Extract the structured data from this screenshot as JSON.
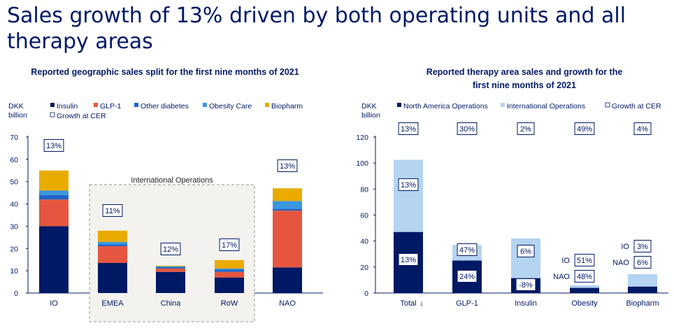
{
  "page": {
    "title": "Sales growth of 13% driven by both operating units and all therapy areas"
  },
  "colors": {
    "insulin": "#001965",
    "glp1": "#E6553F",
    "other_diabetes": "#1E64C8",
    "obesity_care": "#3B97DE",
    "biopharm": "#EAAB00",
    "north_america": "#001965",
    "international": "#B4D4F2",
    "text": "#001965"
  },
  "chart_data": [
    {
      "type": "bar",
      "stacked": true,
      "title": "Reported geographic sales split for the first nine months of 2021",
      "ylabel_lines": [
        "DKK",
        "billion"
      ],
      "ylim": [
        0,
        70
      ],
      "yticks": [
        0,
        10,
        20,
        30,
        40,
        50,
        60,
        70
      ],
      "categories": [
        "IO",
        "EMEA",
        "China",
        "RoW",
        "NAO"
      ],
      "series": [
        {
          "name": "Insulin",
          "color_key": "insulin",
          "values": [
            30.0,
            13.5,
            9.5,
            7.0,
            11.5
          ]
        },
        {
          "name": "GLP-1",
          "color_key": "glp1",
          "values": [
            12.0,
            7.5,
            1.5,
            2.5,
            25.5
          ]
        },
        {
          "name": "Other diabetes",
          "color_key": "other_diabetes",
          "values": [
            2.0,
            0.8,
            0.6,
            1.0,
            0.8
          ]
        },
        {
          "name": "Obesity Care",
          "color_key": "obesity_care",
          "values": [
            2.0,
            1.2,
            0.4,
            0.5,
            3.5
          ]
        },
        {
          "name": "Biopharm",
          "color_key": "biopharm",
          "values": [
            9.0,
            5.0,
            0.3,
            3.8,
            5.7
          ]
        }
      ],
      "growth_legend": "Growth at CER",
      "growth": [
        "13%",
        "11%",
        "12%",
        "17%",
        "13%"
      ],
      "group_box": {
        "label": "International Operations"
      }
    },
    {
      "type": "bar",
      "stacked": true,
      "title_lines": [
        "Reported therapy area sales and growth for the",
        "first nine months of 2021"
      ],
      "ylabel_lines": [
        "DKK",
        "billion"
      ],
      "ylim": [
        0,
        120
      ],
      "yticks": [
        0,
        20,
        40,
        60,
        80,
        100,
        120
      ],
      "categories": [
        "Total",
        "GLP-1",
        "Insulin",
        "Obesity",
        "Biopharm"
      ],
      "category_footnote": "1",
      "series": [
        {
          "name": "North America Operations",
          "color_key": "north_america",
          "values": [
            47,
            25,
            11.5,
            4,
            5
          ]
        },
        {
          "name": "International Operations",
          "color_key": "international",
          "values": [
            55.5,
            12,
            30.5,
            2,
            9.5
          ]
        }
      ],
      "growth_legend": "Growth at CER",
      "growth": [
        "13%",
        "30%",
        "2%",
        "49%",
        "4%"
      ],
      "bar_labels": {
        "na": [
          "13%",
          "24%",
          "-8%",
          "",
          ""
        ],
        "io": [
          "13%",
          "47%",
          "6%",
          "",
          ""
        ]
      },
      "side_labels": {
        "obesity": {
          "io_tag": "IO",
          "io_value": "51%",
          "nao_tag": "NAO",
          "nao_value": "48%"
        },
        "biopharm": {
          "io_tag": "IO",
          "io_value": "3%",
          "nao_tag": "NAO",
          "nao_value": "6%"
        }
      }
    }
  ]
}
